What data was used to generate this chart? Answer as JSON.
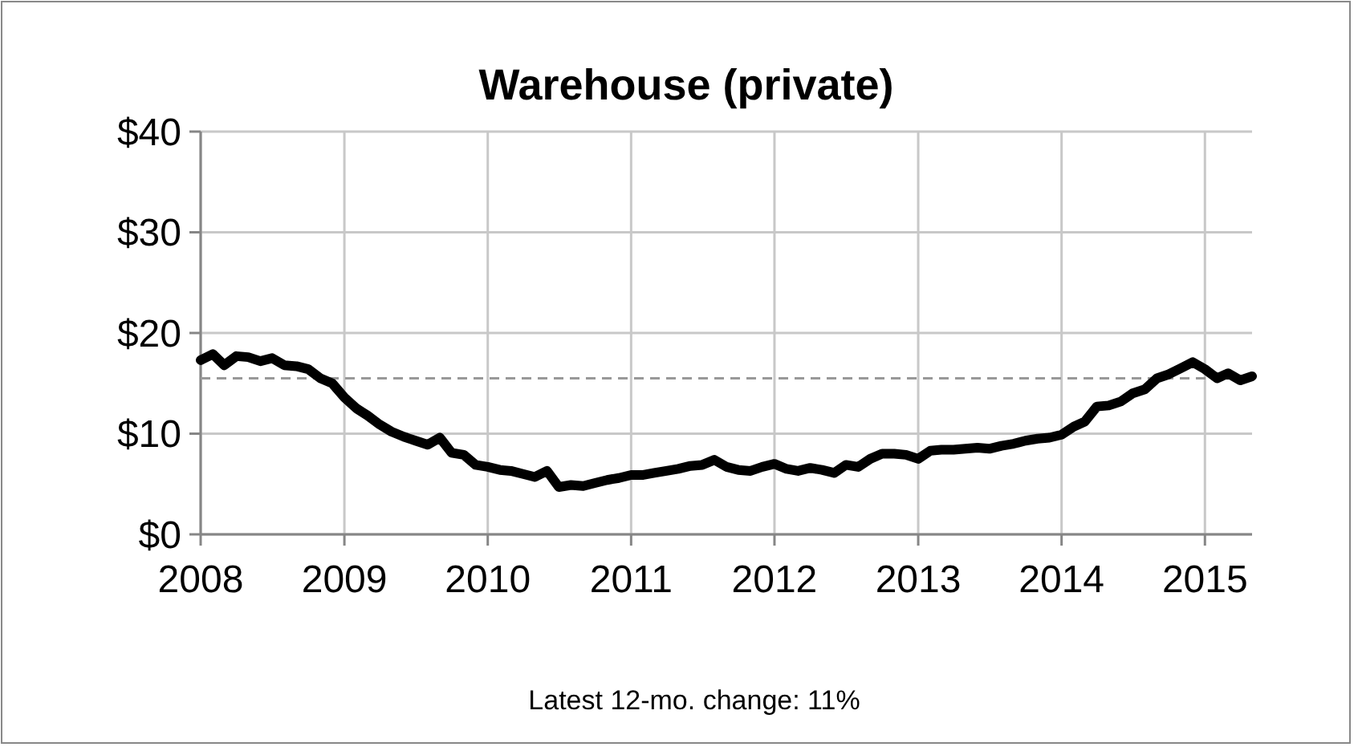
{
  "chart_data": {
    "type": "line",
    "title": "Warehouse (private)",
    "x": [
      "2008-01",
      "2008-02",
      "2008-03",
      "2008-04",
      "2008-05",
      "2008-06",
      "2008-07",
      "2008-08",
      "2008-09",
      "2008-10",
      "2008-11",
      "2008-12",
      "2009-01",
      "2009-02",
      "2009-03",
      "2009-04",
      "2009-05",
      "2009-06",
      "2009-07",
      "2009-08",
      "2009-09",
      "2009-10",
      "2009-11",
      "2009-12",
      "2010-01",
      "2010-02",
      "2010-03",
      "2010-04",
      "2010-05",
      "2010-06",
      "2010-07",
      "2010-08",
      "2010-09",
      "2010-10",
      "2010-11",
      "2010-12",
      "2011-01",
      "2011-02",
      "2011-03",
      "2011-04",
      "2011-05",
      "2011-06",
      "2011-07",
      "2011-08",
      "2011-09",
      "2011-10",
      "2011-11",
      "2011-12",
      "2012-01",
      "2012-02",
      "2012-03",
      "2012-04",
      "2012-05",
      "2012-06",
      "2012-07",
      "2012-08",
      "2012-09",
      "2012-10",
      "2012-11",
      "2012-12",
      "2013-01",
      "2013-02",
      "2013-03",
      "2013-04",
      "2013-05",
      "2013-06",
      "2013-07",
      "2013-08",
      "2013-09",
      "2013-10",
      "2013-11",
      "2013-12",
      "2014-01",
      "2014-02",
      "2014-03",
      "2014-04",
      "2014-05",
      "2014-06",
      "2014-07",
      "2014-08",
      "2014-09",
      "2014-10",
      "2014-11",
      "2014-12",
      "2015-01",
      "2015-02",
      "2015-03",
      "2015-04",
      "2015-05"
    ],
    "series": [
      {
        "color": "#000000",
        "values": [
          17.3,
          17.9,
          16.8,
          17.7,
          17.6,
          17.2,
          17.5,
          16.8,
          16.7,
          16.4,
          15.5,
          15.0,
          13.6,
          12.5,
          11.8,
          10.9,
          10.2,
          9.7,
          9.3,
          8.9,
          9.6,
          8.1,
          7.9,
          6.9,
          6.7,
          6.4,
          6.3,
          6.0,
          5.7,
          6.3,
          4.7,
          4.9,
          4.8,
          5.1,
          5.4,
          5.6,
          5.9,
          5.9,
          6.1,
          6.3,
          6.5,
          6.8,
          6.9,
          7.4,
          6.7,
          6.4,
          6.3,
          6.7,
          7.0,
          6.5,
          6.3,
          6.6,
          6.4,
          6.1,
          6.9,
          6.7,
          7.5,
          8.0,
          8.0,
          7.9,
          7.5,
          8.3,
          8.4,
          8.4,
          8.5,
          8.6,
          8.5,
          8.8,
          9.0,
          9.3,
          9.5,
          9.6,
          9.9,
          10.7,
          11.2,
          12.7,
          12.8,
          13.2,
          14.0,
          14.4,
          15.5,
          15.9,
          16.5,
          17.1,
          16.4,
          15.5,
          16.0,
          15.3,
          15.7
        ]
      }
    ],
    "xlim": [
      "2008-01",
      "2015-05"
    ],
    "xticks": [
      {
        "value": "2008-01",
        "label": "2008"
      },
      {
        "value": "2009-01",
        "label": "2009"
      },
      {
        "value": "2010-01",
        "label": "2010"
      },
      {
        "value": "2011-01",
        "label": "2011"
      },
      {
        "value": "2012-01",
        "label": "2012"
      },
      {
        "value": "2013-01",
        "label": "2013"
      },
      {
        "value": "2014-01",
        "label": "2014"
      },
      {
        "value": "2015-01",
        "label": "2015"
      }
    ],
    "ylim": [
      0,
      40
    ],
    "yticks": [
      {
        "value": 0,
        "label": "$0"
      },
      {
        "value": 10,
        "label": "$10"
      },
      {
        "value": 20,
        "label": "$20"
      },
      {
        "value": 30,
        "label": "$30"
      },
      {
        "value": 40,
        "label": "$40"
      }
    ],
    "grid": true,
    "marker": "none",
    "line_style": "solid",
    "ref_lines": [
      {
        "axis": "y",
        "value": 15.5,
        "color": "#999999",
        "line_style": "dashed"
      }
    ],
    "annotations": [
      "Latest 12-mo. change: 11%"
    ]
  }
}
